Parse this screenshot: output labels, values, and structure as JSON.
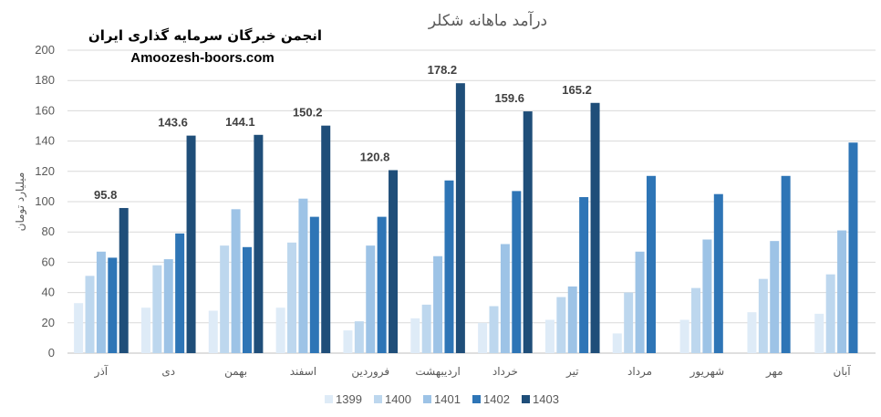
{
  "brand": {
    "name_fa": "انجمن خبرگان سرمایه گذاری ایران",
    "site": "Amoozesh-boors.com"
  },
  "chart_data": {
    "type": "bar",
    "title": "درآمد ماهانه شکلر",
    "xlabel": "",
    "ylabel": "میلیارد تومان",
    "ylim": [
      0,
      200
    ],
    "yticks": [
      0,
      20,
      40,
      60,
      80,
      100,
      120,
      140,
      160,
      180,
      200
    ],
    "grid": true,
    "legend_position": "bottom",
    "categories": [
      "آذر",
      "دی",
      "بهمن",
      "اسفند",
      "فروردین",
      "اردیبهشت",
      "خرداد",
      "تیر",
      "مرداد",
      "شهریور",
      "مهر",
      "آبان"
    ],
    "series": [
      {
        "name": "1399",
        "color": "#deebf7",
        "values": [
          33,
          30,
          28,
          30,
          15,
          23,
          20,
          22,
          13,
          22,
          27,
          26
        ]
      },
      {
        "name": "1400",
        "color": "#bdd7ee",
        "values": [
          51,
          58,
          71,
          73,
          21,
          32,
          31,
          37,
          40,
          43,
          49,
          52
        ]
      },
      {
        "name": "1401",
        "color": "#9dc3e6",
        "values": [
          67,
          62,
          95,
          102,
          71,
          64,
          72,
          44,
          67,
          75,
          74,
          81
        ]
      },
      {
        "name": "1402",
        "color": "#2e75b6",
        "values": [
          63,
          79,
          70,
          90,
          90,
          114,
          107,
          103,
          117,
          105,
          117,
          139
        ]
      },
      {
        "name": "1403",
        "color": "#1f4e79",
        "values": [
          95.8,
          143.6,
          144.1,
          150.2,
          120.8,
          178.2,
          159.6,
          165.2,
          null,
          null,
          null,
          null
        ],
        "data_labels": [
          "95.8",
          "143.6",
          "144.1",
          "150.2",
          "120.8",
          "178.2",
          "159.6",
          "165.2",
          null,
          null,
          null,
          null
        ]
      }
    ]
  }
}
